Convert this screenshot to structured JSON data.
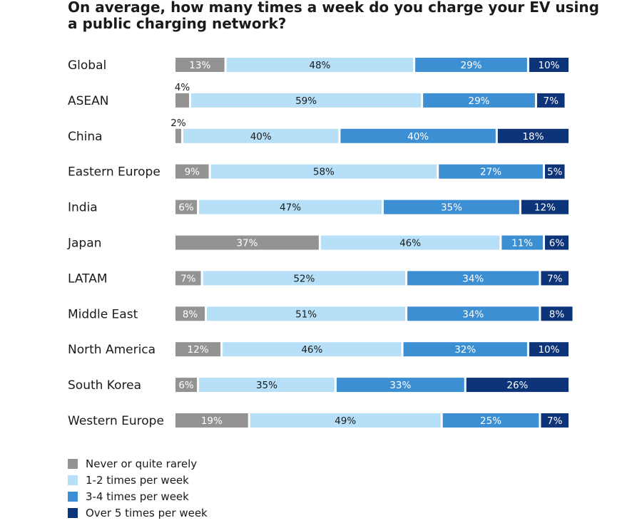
{
  "chart_data": {
    "type": "bar",
    "orientation": "horizontal",
    "stacked": true,
    "normalized": true,
    "title": "On average, how many times a week do you charge your EV using a public charging network?",
    "title_lines": [
      "On average, how many times a week do you charge your EV using",
      "a public charging network?"
    ],
    "value_suffix": "%",
    "xlabel": "",
    "ylabel": "",
    "xlim": [
      0,
      100
    ],
    "grid": false,
    "legend_position": "bottom-left",
    "categories": [
      "Global",
      "ASEAN",
      "China",
      "Eastern Europe",
      "India",
      "Japan",
      "LATAM",
      "Middle East",
      "North America",
      "South Korea",
      "Western Europe"
    ],
    "series": [
      {
        "name": "Never or quite rarely",
        "color": "#939393",
        "label_color": "#ffffff",
        "values": [
          13,
          4,
          2,
          9,
          6,
          37,
          7,
          8,
          12,
          6,
          19
        ]
      },
      {
        "name": "1-2 times per week",
        "color": "#b7e0f8",
        "label_color": "#1a1a1a",
        "values": [
          48,
          59,
          40,
          58,
          47,
          46,
          52,
          51,
          46,
          35,
          49
        ]
      },
      {
        "name": "3-4 times per week",
        "color": "#3d8fd3",
        "label_color": "#ffffff",
        "values": [
          29,
          29,
          40,
          27,
          35,
          11,
          34,
          34,
          32,
          33,
          25
        ]
      },
      {
        "name": "Over 5 times per week",
        "color": "#0d3478",
        "label_color": "#ffffff",
        "values": [
          10,
          7,
          18,
          5,
          12,
          6,
          7,
          8,
          10,
          26,
          7
        ]
      }
    ]
  }
}
